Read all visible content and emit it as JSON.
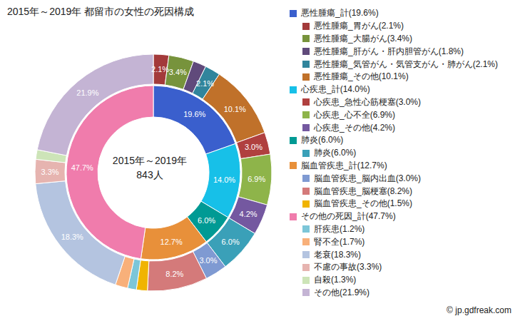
{
  "chart_data": {
    "type": "donut",
    "title": "2015年～2019年 都留市の女性の死因構成",
    "center_text": [
      "2015年～2019年",
      "843人"
    ],
    "source": "© jp.gdfreak.com",
    "data_labels": true,
    "groups": [
      {
        "label": "悪性腫瘍_計(19.6%)",
        "value": 19.6,
        "value_label": "19.6%",
        "color": "#3a5fcd",
        "children": [
          {
            "label": "悪性腫瘍_胃がん(2.1%)",
            "value": 2.1,
            "value_label": "2.1%",
            "color": "#a33a3a"
          },
          {
            "label": "悪性腫瘍_大腸がん(3.4%)",
            "value": 3.4,
            "value_label": "3.4%",
            "color": "#77933c"
          },
          {
            "label": "悪性腫瘍_肝がん・肝内胆管がん(1.8%)",
            "value": 1.8,
            "value_label": null,
            "color": "#604a7b"
          },
          {
            "label": "悪性腫瘍_気管がん・気管支がん・肺がん(2.1%)",
            "value": 2.1,
            "value_label": "2.1%",
            "color": "#31859c"
          },
          {
            "label": "悪性腫瘍_その他(10.1%)",
            "value": 10.1,
            "value_label": "10.1%",
            "color": "#c0712a"
          }
        ]
      },
      {
        "label": "心疾患_計(14.0%)",
        "value": 14.0,
        "value_label": "14.0%",
        "color": "#17c0e8",
        "children": [
          {
            "label": "心疾患_急性心筋梗塞(3.0%)",
            "value": 3.0,
            "value_label": "3.0%",
            "color": "#b0403f"
          },
          {
            "label": "心疾患_心不全(6.9%)",
            "value": 6.9,
            "value_label": "6.9%",
            "color": "#8eb44a"
          },
          {
            "label": "心疾患_その他(4.2%)",
            "value": 4.2,
            "value_label": "4.2%",
            "color": "#7458a0"
          }
        ]
      },
      {
        "label": "肺炎(6.0%)",
        "value": 6.0,
        "value_label": "6.0%",
        "color": "#009a94",
        "children": [
          {
            "label": "肺炎(6.0%)",
            "value": 6.0,
            "value_label": "6.0%",
            "color": "#3aa0b8"
          }
        ]
      },
      {
        "label": "脳血管疾患_計(12.7%)",
        "value": 12.7,
        "value_label": "12.7%",
        "color": "#e8903a",
        "children": [
          {
            "label": "脳血管疾患_脳内出血(3.0%)",
            "value": 3.0,
            "value_label": "3.0%",
            "color": "#7f9ad2"
          },
          {
            "label": "脳血管疾患_脳梗塞(8.2%)",
            "value": 8.2,
            "value_label": "8.2%",
            "color": "#d47a7a"
          },
          {
            "label": "脳血管疾患_その他(1.5%)",
            "value": 1.5,
            "value_label": null,
            "color": "#f0b400"
          }
        ]
      },
      {
        "label": "その他の死因_計(47.7%)",
        "value": 47.7,
        "value_label": "47.7%",
        "color": "#f07cac",
        "children": [
          {
            "label": "肝疾患(1.2%)",
            "value": 1.2,
            "value_label": null,
            "color": "#7cc6d8"
          },
          {
            "label": "腎不全(1.7%)",
            "value": 1.7,
            "value_label": null,
            "color": "#f8b07a"
          },
          {
            "label": "老衰(18.3%)",
            "value": 18.3,
            "value_label": "18.3%",
            "color": "#b4c4e0"
          },
          {
            "label": "不慮の事故(3.3%)",
            "value": 3.3,
            "value_label": "3.3%",
            "color": "#e6b4b0"
          },
          {
            "label": "自殺(1.3%)",
            "value": 1.3,
            "value_label": null,
            "color": "#cde4b8"
          },
          {
            "label": "その他(21.9%)",
            "value": 21.9,
            "value_label": "21.9%",
            "color": "#c4b4d4"
          }
        ]
      }
    ]
  }
}
